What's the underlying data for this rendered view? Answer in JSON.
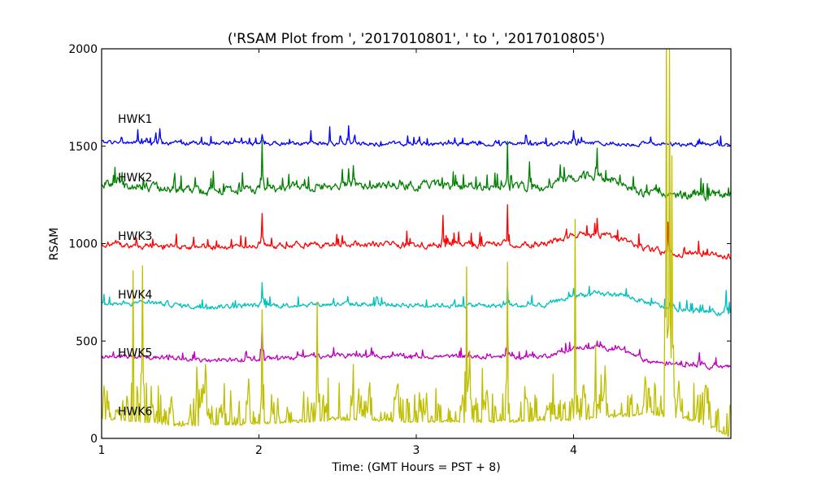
{
  "chart_data": {
    "type": "line",
    "title": "('RSAM Plot from ', '2017010801', ' to ', '2017010805')",
    "xlabel": "Time: (GMT Hours = PST + 8)",
    "ylabel": "RSAM",
    "xlim": [
      1,
      5
    ],
    "ylim": [
      0,
      2000
    ],
    "xticks": [
      1,
      2,
      3,
      4
    ],
    "xtick_labels": [
      "1",
      "2",
      "3",
      "4"
    ],
    "yticks": [
      0,
      500,
      1000,
      1500,
      2000
    ],
    "ytick_labels": [
      "0",
      "500",
      "1000",
      "1500",
      "2000"
    ],
    "grid": false,
    "legend": "none (inline series labels)",
    "series": [
      {
        "name": "HWK1",
        "color": "#0000ff",
        "label_y": 1640,
        "baseline": [
          [
            1,
            1520
          ],
          [
            2,
            1515
          ],
          [
            3,
            1512
          ],
          [
            4,
            1515
          ],
          [
            4.5,
            1512
          ],
          [
            5,
            1508
          ]
        ],
        "noise": 8,
        "spike_rate": 0.06,
        "spike_amp": 40,
        "spikes": [
          [
            1.23,
            1585
          ],
          [
            1.37,
            1590
          ],
          [
            2.33,
            1580
          ],
          [
            2.45,
            1600
          ],
          [
            2.57,
            1605
          ],
          [
            2.02,
            1560
          ],
          [
            4.0,
            1580
          ]
        ]
      },
      {
        "name": "HWK2",
        "color": "#008000",
        "label_y": 1340,
        "baseline": [
          [
            1,
            1315
          ],
          [
            1.4,
            1280
          ],
          [
            1.8,
            1270
          ],
          [
            2.5,
            1300
          ],
          [
            3,
            1300
          ],
          [
            3.8,
            1290
          ],
          [
            4.1,
            1350
          ],
          [
            4.3,
            1320
          ],
          [
            4.4,
            1270
          ],
          [
            4.6,
            1255
          ],
          [
            5,
            1245
          ]
        ],
        "noise": 18,
        "spike_rate": 0.07,
        "spike_amp": 80,
        "spikes": [
          [
            2.02,
            1530
          ],
          [
            3.58,
            1525
          ],
          [
            4.15,
            1490
          ],
          [
            3.72,
            1420
          ],
          [
            2.6,
            1400
          ]
        ]
      },
      {
        "name": "HWK3",
        "color": "#ff0000",
        "label_y": 1040,
        "baseline": [
          [
            1,
            1000
          ],
          [
            1.4,
            985
          ],
          [
            1.8,
            985
          ],
          [
            2.5,
            1000
          ],
          [
            3,
            995
          ],
          [
            3.8,
            1000
          ],
          [
            4.05,
            1050
          ],
          [
            4.3,
            1030
          ],
          [
            4.45,
            975
          ],
          [
            4.6,
            950
          ],
          [
            5,
            935
          ]
        ],
        "noise": 12,
        "spike_rate": 0.07,
        "spike_amp": 70,
        "spikes": [
          [
            2.02,
            1155
          ],
          [
            3.17,
            1145
          ],
          [
            3.58,
            1200
          ],
          [
            4.15,
            1130
          ],
          [
            4.6,
            1110
          ]
        ]
      },
      {
        "name": "HWK4",
        "color": "#00bfbf",
        "label_y": 740,
        "baseline": [
          [
            1,
            690
          ],
          [
            1.3,
            700
          ],
          [
            1.6,
            675
          ],
          [
            2.5,
            690
          ],
          [
            3,
            685
          ],
          [
            3.8,
            680
          ],
          [
            4.05,
            740
          ],
          [
            4.3,
            740
          ],
          [
            4.45,
            700
          ],
          [
            4.6,
            670
          ],
          [
            5,
            640
          ]
        ],
        "noise": 10,
        "spike_rate": 0.06,
        "spike_amp": 55,
        "spikes": [
          [
            2.02,
            800
          ],
          [
            3.58,
            790
          ],
          [
            4.0,
            770
          ],
          [
            4.97,
            760
          ]
        ]
      },
      {
        "name": "HWK5",
        "color": "#bf00bf",
        "label_y": 440,
        "baseline": [
          [
            1,
            420
          ],
          [
            1.4,
            415
          ],
          [
            1.7,
            400
          ],
          [
            2.5,
            425
          ],
          [
            3,
            420
          ],
          [
            3.8,
            420
          ],
          [
            4.05,
            470
          ],
          [
            4.3,
            460
          ],
          [
            4.45,
            400
          ],
          [
            4.6,
            385
          ],
          [
            5,
            365
          ]
        ],
        "noise": 9,
        "spike_rate": 0.06,
        "spike_amp": 40,
        "spikes": [
          [
            2.02,
            595
          ],
          [
            3.58,
            560
          ],
          [
            4.15,
            500
          ],
          [
            4.8,
            440
          ]
        ]
      },
      {
        "name": "HWK6",
        "color": "#bfbf00",
        "label_y": 140,
        "baseline": [
          [
            1,
            100
          ],
          [
            1.5,
            60
          ],
          [
            2,
            70
          ],
          [
            2.5,
            90
          ],
          [
            3,
            80
          ],
          [
            3.5,
            80
          ],
          [
            4,
            90
          ],
          [
            4.5,
            120
          ],
          [
            4.8,
            80
          ],
          [
            4.95,
            20
          ],
          [
            5,
            0
          ]
        ],
        "noise": 55,
        "spike_rate": 0.12,
        "spike_amp": 200,
        "spikes": [
          [
            1.2,
            860
          ],
          [
            1.26,
            885
          ],
          [
            1.66,
            380
          ],
          [
            2.02,
            660
          ],
          [
            2.37,
            700
          ],
          [
            2.6,
            380
          ],
          [
            3.32,
            880
          ],
          [
            3.58,
            905
          ],
          [
            3.87,
            330
          ],
          [
            4.01,
            1125
          ],
          [
            4.14,
            480
          ],
          [
            4.59,
            2000
          ],
          [
            4.61,
            2000
          ],
          [
            4.625,
            1450
          ]
        ]
      }
    ]
  }
}
